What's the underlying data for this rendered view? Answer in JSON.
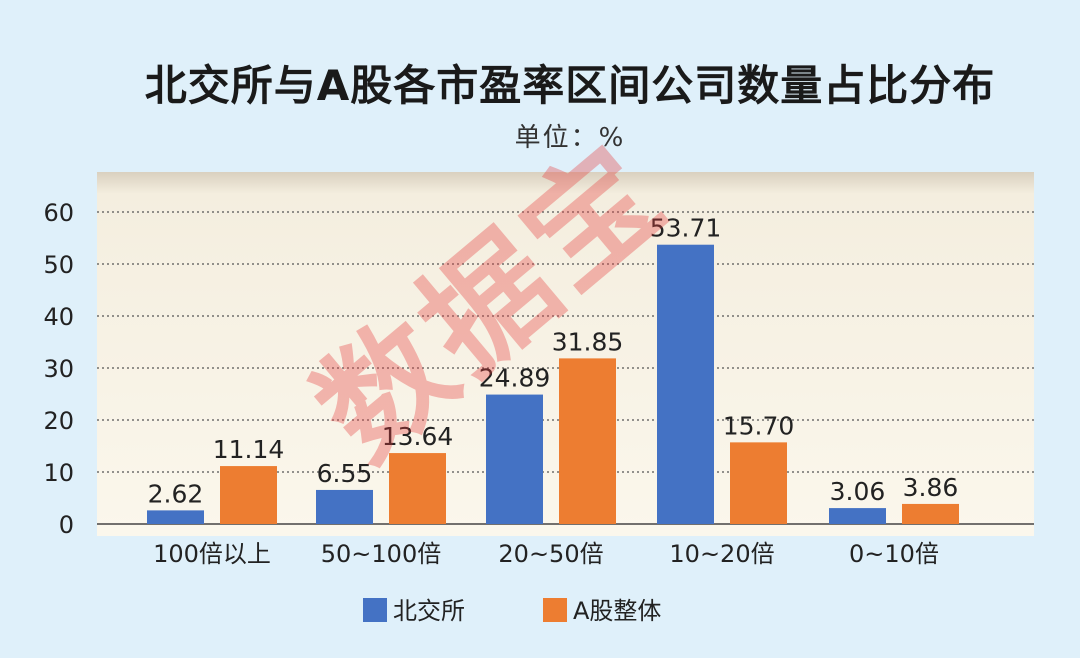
{
  "chart_data": {
    "type": "bar",
    "title": "北交所与A股各市盈率区间公司数量占比分布",
    "subtitle": "单位：%",
    "categories": [
      "100倍以上",
      "50~100倍",
      "20~50倍",
      "10~20倍",
      "0~10倍"
    ],
    "series": [
      {
        "name": "北交所",
        "values": [
          2.62,
          6.55,
          24.89,
          53.71,
          3.06
        ],
        "color": "#4472c4"
      },
      {
        "name": "A股整体",
        "values": [
          11.14,
          13.64,
          31.85,
          15.7,
          3.86
        ],
        "color": "#ed7d31"
      }
    ],
    "value_labels": [
      [
        "2.62",
        "6.55",
        "24.89",
        "53.71",
        "3.06"
      ],
      [
        "11.14",
        "13.64",
        "31.85",
        "15.70",
        "3.86"
      ]
    ],
    "y_ticks": [
      "0",
      "10",
      "20",
      "30",
      "40",
      "50",
      "60"
    ],
    "ylim": [
      0,
      60
    ],
    "grid": true,
    "legend_position": "bottom"
  },
  "watermark": "数据宝",
  "colors": {
    "background": "#dff0fa",
    "plot_area": "#faf4e6"
  }
}
